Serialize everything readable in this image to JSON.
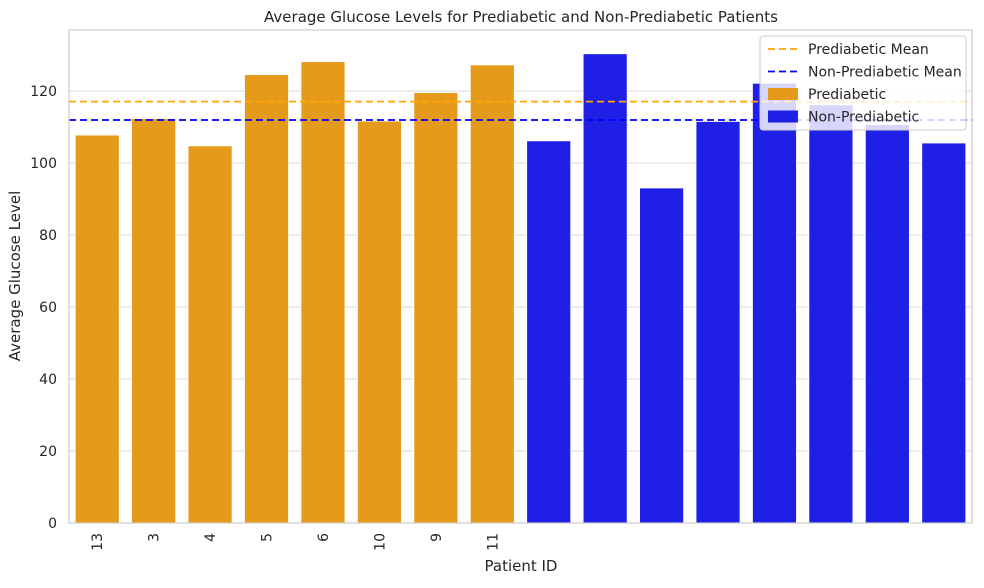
{
  "chart_data": {
    "type": "bar",
    "title": "Average Glucose Levels for Prediabetic and Non-Prediabetic Patients",
    "xlabel": "Patient ID",
    "ylabel": "Average Glucose Level",
    "ylim": [
      0,
      137
    ],
    "yticks": [
      0,
      20,
      40,
      60,
      80,
      100,
      120
    ],
    "grid": "horizontal",
    "legend_position": "top-right",
    "categories": [
      "13",
      "3",
      "4",
      "5",
      "6",
      "10",
      "9",
      "11",
      "",
      "",
      "",
      "",
      "",
      "",
      "",
      ""
    ],
    "series": [
      {
        "name": "Prediabetic",
        "color": "#e69a1a",
        "values": [
          107.8,
          112.4,
          104.8,
          124.6,
          128.2,
          111.7,
          119.6,
          127.3,
          null,
          null,
          null,
          null,
          null,
          null,
          null,
          null
        ]
      },
      {
        "name": "Non-Prediabetic",
        "color": "#1f1fe6",
        "values": [
          null,
          null,
          null,
          null,
          null,
          null,
          null,
          null,
          106.2,
          130.4,
          93.1,
          111.6,
          122.2,
          116.2,
          110.7,
          105.6
        ]
      }
    ],
    "reference_lines": [
      {
        "name": "Prediabetic Mean",
        "value": 117.1,
        "color": "#ffa500",
        "style": "dashed"
      },
      {
        "name": "Non-Prediabetic Mean",
        "value": 112.0,
        "color": "#0000ff",
        "style": "dashed"
      }
    ]
  }
}
